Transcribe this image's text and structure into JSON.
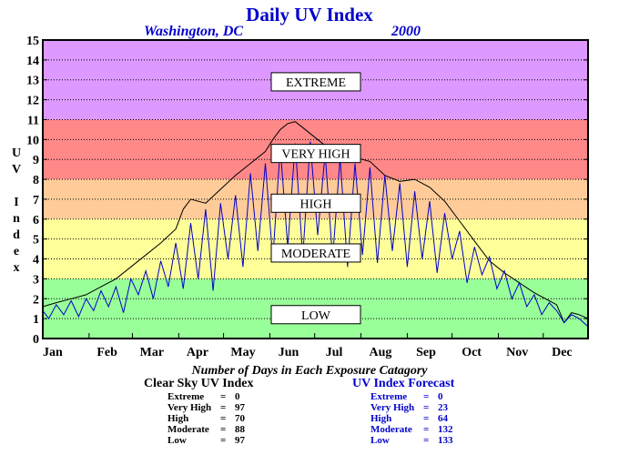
{
  "header": {
    "title": "Daily UV Index",
    "location": "Washington, DC",
    "year": "2000"
  },
  "colors": {
    "extreme": "#dd99ff",
    "very_high": "#ff8888",
    "high": "#ffcc99",
    "moderate": "#ffff99",
    "low": "#99ff99",
    "clear_sky_line": "#000000",
    "forecast_line": "#0000cc",
    "title": "#0000cc"
  },
  "chart_data": {
    "type": "line",
    "ylabel": "UV Index",
    "ylim": [
      0,
      15
    ],
    "yticks": [
      "0",
      "1",
      "2",
      "3",
      "4",
      "5",
      "6",
      "7",
      "8",
      "9",
      "10",
      "11",
      "12",
      "13",
      "14",
      "15"
    ],
    "months": [
      "Jan",
      "Feb",
      "Mar",
      "Apr",
      "May",
      "Jun",
      "Jul",
      "Aug",
      "Sep",
      "Oct",
      "Nov",
      "Dec"
    ],
    "grid": true,
    "bands": [
      {
        "label": "EXTREME",
        "min": 11,
        "max": 15,
        "label_y": 12.9
      },
      {
        "label": "VERY HIGH",
        "min": 8,
        "max": 11,
        "label_y": 9.3
      },
      {
        "label": "HIGH",
        "min": 6,
        "max": 8,
        "label_y": 6.8
      },
      {
        "label": "MODERATE",
        "min": 3,
        "max": 6,
        "label_y": 4.3
      },
      {
        "label": "LOW",
        "min": 0,
        "max": 3,
        "label_y": 1.2
      }
    ],
    "series": [
      {
        "name": "Clear Sky UV Index",
        "x": [
          1,
          10,
          20,
          30,
          40,
          50,
          60,
          70,
          80,
          90,
          95,
          100,
          110,
          120,
          130,
          140,
          150,
          155,
          160,
          165,
          170,
          175,
          180,
          185,
          190,
          200,
          210,
          220,
          230,
          240,
          250,
          260,
          270,
          280,
          290,
          300,
          310,
          320,
          330,
          340,
          345,
          350,
          355,
          360,
          366
        ],
        "y": [
          1.6,
          1.8,
          2.0,
          2.2,
          2.6,
          3.0,
          3.6,
          4.2,
          4.8,
          5.5,
          6.5,
          7.0,
          6.8,
          7.5,
          8.2,
          8.8,
          9.4,
          10.0,
          10.5,
          10.8,
          10.9,
          10.6,
          10.3,
          10.0,
          9.7,
          9.3,
          9.1,
          8.9,
          8.2,
          7.9,
          8.0,
          7.6,
          6.9,
          5.9,
          4.9,
          3.9,
          3.3,
          2.8,
          2.3,
          1.9,
          1.7,
          0.8,
          1.3,
          1.2,
          1.0
        ]
      },
      {
        "name": "UV Index Forecast",
        "x": [
          1,
          5,
          10,
          15,
          20,
          25,
          30,
          35,
          40,
          45,
          50,
          55,
          60,
          65,
          70,
          75,
          80,
          85,
          90,
          95,
          100,
          105,
          110,
          115,
          120,
          125,
          130,
          135,
          140,
          145,
          150,
          155,
          160,
          165,
          170,
          175,
          180,
          185,
          190,
          195,
          200,
          205,
          210,
          215,
          220,
          225,
          230,
          235,
          240,
          245,
          250,
          255,
          260,
          265,
          270,
          275,
          280,
          285,
          290,
          295,
          300,
          305,
          310,
          315,
          320,
          325,
          330,
          335,
          340,
          345,
          350,
          355,
          360,
          366
        ],
        "y": [
          1.4,
          1.0,
          1.7,
          1.2,
          1.9,
          1.1,
          2.0,
          1.4,
          2.4,
          1.6,
          2.6,
          1.3,
          3.0,
          2.2,
          3.4,
          2.0,
          3.9,
          2.6,
          4.8,
          2.5,
          5.8,
          3.0,
          6.5,
          2.4,
          6.8,
          4.0,
          7.2,
          3.6,
          8.3,
          4.4,
          8.8,
          4.0,
          9.6,
          4.6,
          9.8,
          4.1,
          9.9,
          5.2,
          9.3,
          4.0,
          9.1,
          3.6,
          8.8,
          4.2,
          8.6,
          3.8,
          8.2,
          4.4,
          7.8,
          3.6,
          7.4,
          4.0,
          6.9,
          3.3,
          6.3,
          4.0,
          5.4,
          2.8,
          4.6,
          3.2,
          4.1,
          2.5,
          3.4,
          2.0,
          2.8,
          1.6,
          2.2,
          1.2,
          1.8,
          1.4,
          0.8,
          1.2,
          1.0,
          0.6
        ]
      }
    ]
  },
  "summary": {
    "title": "Number of Days in Each Exposure Catagory",
    "clear_sky": {
      "title": "Clear Sky UV Index",
      "rows": [
        {
          "label": "Extreme",
          "value": "0"
        },
        {
          "label": "Very High",
          "value": "97"
        },
        {
          "label": "High",
          "value": "70"
        },
        {
          "label": "Moderate",
          "value": "88"
        },
        {
          "label": "Low",
          "value": "97"
        }
      ]
    },
    "forecast": {
      "title": "UV Index Forecast",
      "rows": [
        {
          "label": "Extreme",
          "value": "0"
        },
        {
          "label": "Very High",
          "value": "23"
        },
        {
          "label": "High",
          "value": "64"
        },
        {
          "label": "Moderate",
          "value": "132"
        },
        {
          "label": "Low",
          "value": "133"
        }
      ]
    }
  }
}
